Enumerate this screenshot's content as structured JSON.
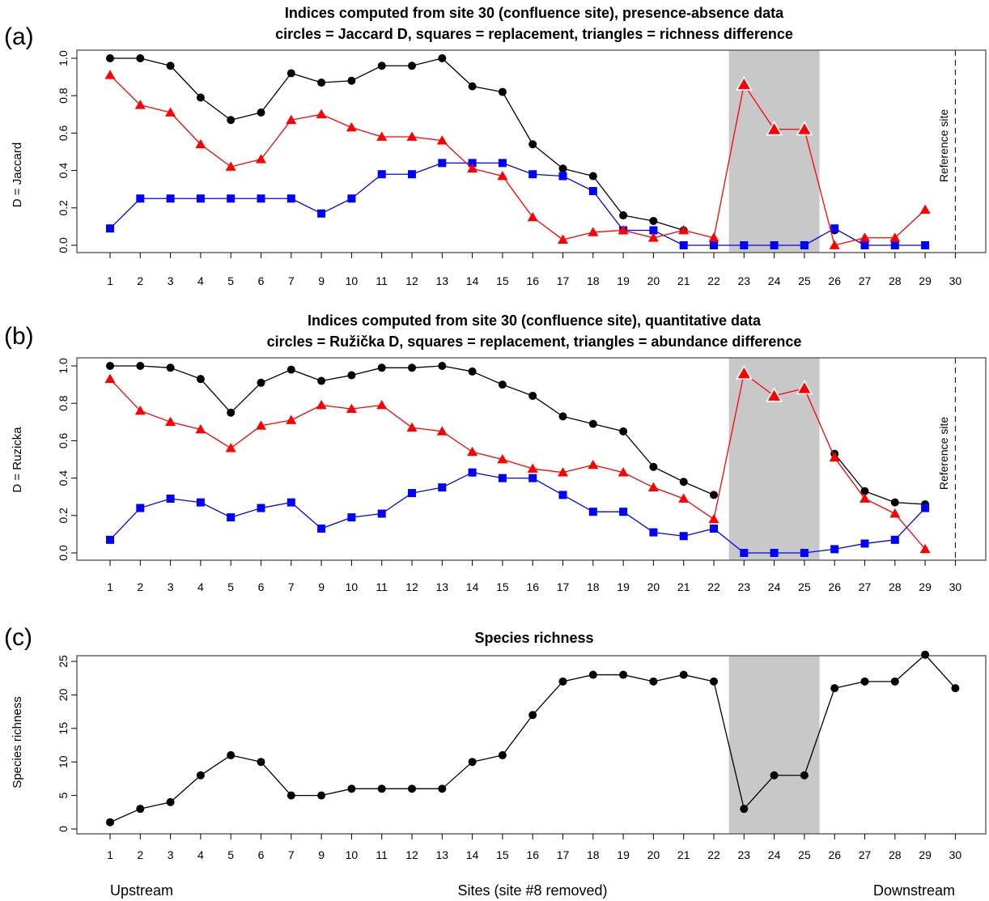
{
  "figure": {
    "footer": {
      "left": "Upstream",
      "center": "Sites (site #8 removed)",
      "right": "Downstream"
    }
  },
  "chart_data": [
    {
      "type": "line",
      "panel_label": "(a)",
      "title": "Indices computed from site 30 (confluence site), presence-absence data",
      "subtitle": "circles = Jaccard D, squares = replacement, triangles = richness difference",
      "ylabel": "D = Jaccard",
      "ylim": [
        0,
        1
      ],
      "yticks": [
        "0.0",
        "0.2",
        "0.4",
        "0.6",
        "0.8",
        "1.0"
      ],
      "categories": [
        "1",
        "2",
        "3",
        "4",
        "5",
        "6",
        "7",
        "9",
        "10",
        "11",
        "12",
        "13",
        "14",
        "15",
        "16",
        "17",
        "18",
        "19",
        "20",
        "21",
        "22",
        "23",
        "24",
        "25",
        "26",
        "27",
        "28",
        "29",
        "30"
      ],
      "shaded_sites": [
        "23",
        "25"
      ],
      "reference_line": {
        "site": "30",
        "label": "Reference site"
      },
      "colors": {
        "circles": "#000000",
        "squares": "#0000ff",
        "triangles": "#ff0000",
        "shade": "#c8c8c8"
      },
      "series": [
        {
          "marker": "circle",
          "values": [
            1.0,
            1.0,
            0.96,
            0.79,
            0.67,
            0.71,
            0.92,
            0.87,
            0.88,
            0.96,
            0.96,
            1.0,
            0.85,
            0.82,
            0.54,
            0.41,
            0.37,
            0.16,
            0.13,
            0.08,
            null,
            null,
            null,
            null,
            0.08,
            null,
            null,
            null,
            null
          ]
        },
        {
          "marker": "square",
          "values": [
            0.09,
            0.25,
            0.25,
            0.25,
            0.25,
            0.25,
            0.25,
            0.17,
            0.25,
            0.38,
            0.38,
            0.44,
            0.44,
            0.44,
            0.38,
            0.37,
            0.29,
            0.08,
            0.08,
            0.0,
            0.0,
            0.0,
            0.0,
            0.0,
            0.09,
            0.0,
            0.0,
            0.0,
            null
          ]
        },
        {
          "marker": "triangle",
          "values": [
            0.91,
            0.75,
            0.71,
            0.54,
            0.42,
            0.46,
            0.67,
            0.7,
            0.63,
            0.58,
            0.58,
            0.56,
            0.41,
            0.37,
            0.15,
            0.03,
            0.07,
            0.08,
            0.04,
            0.08,
            0.04,
            0.86,
            0.62,
            0.62,
            0.0,
            0.04,
            0.04,
            0.19,
            null
          ]
        }
      ]
    },
    {
      "type": "line",
      "panel_label": "(b)",
      "title": "Indices computed from site 30 (confluence site), quantitative data",
      "subtitle": "circles = Ružička D, squares = replacement, triangles = abundance difference",
      "ylabel": "D = Ruzicka",
      "ylim": [
        0,
        1
      ],
      "yticks": [
        "0.0",
        "0.2",
        "0.4",
        "0.6",
        "0.8",
        "1.0"
      ],
      "categories": [
        "1",
        "2",
        "3",
        "4",
        "5",
        "6",
        "7",
        "9",
        "10",
        "11",
        "12",
        "13",
        "14",
        "15",
        "16",
        "17",
        "18",
        "19",
        "20",
        "21",
        "22",
        "23",
        "24",
        "25",
        "26",
        "27",
        "28",
        "29",
        "30"
      ],
      "shaded_sites": [
        "23",
        "25"
      ],
      "reference_line": {
        "site": "30",
        "label": "Reference site"
      },
      "colors": {
        "circles": "#000000",
        "squares": "#0000ff",
        "triangles": "#ff0000",
        "shade": "#c8c8c8"
      },
      "series": [
        {
          "marker": "circle",
          "values": [
            1.0,
            1.0,
            0.99,
            0.93,
            0.75,
            0.91,
            0.98,
            0.92,
            0.95,
            0.99,
            0.99,
            1.0,
            0.97,
            0.9,
            0.84,
            0.73,
            0.69,
            0.65,
            0.46,
            0.38,
            0.31,
            null,
            null,
            null,
            0.53,
            0.33,
            0.27,
            0.26,
            null
          ]
        },
        {
          "marker": "square",
          "values": [
            0.07,
            0.24,
            0.29,
            0.27,
            0.19,
            0.24,
            0.27,
            0.13,
            0.19,
            0.21,
            0.32,
            0.35,
            0.43,
            0.4,
            0.4,
            0.31,
            0.22,
            0.22,
            0.11,
            0.09,
            0.13,
            0.0,
            0.0,
            0.0,
            0.02,
            0.05,
            0.07,
            0.24,
            null
          ]
        },
        {
          "marker": "triangle",
          "values": [
            0.93,
            0.76,
            0.7,
            0.66,
            0.56,
            0.68,
            0.71,
            0.79,
            0.77,
            0.79,
            0.67,
            0.65,
            0.54,
            0.5,
            0.45,
            0.43,
            0.47,
            0.43,
            0.35,
            0.29,
            0.18,
            0.96,
            0.84,
            0.88,
            0.51,
            0.29,
            0.21,
            0.02,
            null
          ]
        }
      ]
    },
    {
      "type": "line",
      "panel_label": "(c)",
      "title": "Species richness",
      "ylabel": "Species richness",
      "ylim": [
        0,
        25
      ],
      "yticks": [
        "0",
        "5",
        "10",
        "15",
        "20",
        "25"
      ],
      "categories": [
        "1",
        "2",
        "3",
        "4",
        "5",
        "6",
        "7",
        "9",
        "10",
        "11",
        "12",
        "13",
        "14",
        "15",
        "16",
        "17",
        "18",
        "19",
        "20",
        "21",
        "22",
        "23",
        "24",
        "25",
        "26",
        "27",
        "28",
        "29",
        "30"
      ],
      "shaded_sites": [
        "23",
        "25"
      ],
      "colors": {
        "circles": "#000000",
        "shade": "#c8c8c8"
      },
      "series": [
        {
          "marker": "circle",
          "values": [
            1,
            3,
            4,
            8,
            11,
            10,
            5,
            5,
            6,
            6,
            6,
            6,
            10,
            11,
            17,
            22,
            23,
            23,
            22,
            23,
            22,
            3,
            8,
            8,
            21,
            22,
            22,
            26,
            21
          ]
        }
      ]
    }
  ]
}
